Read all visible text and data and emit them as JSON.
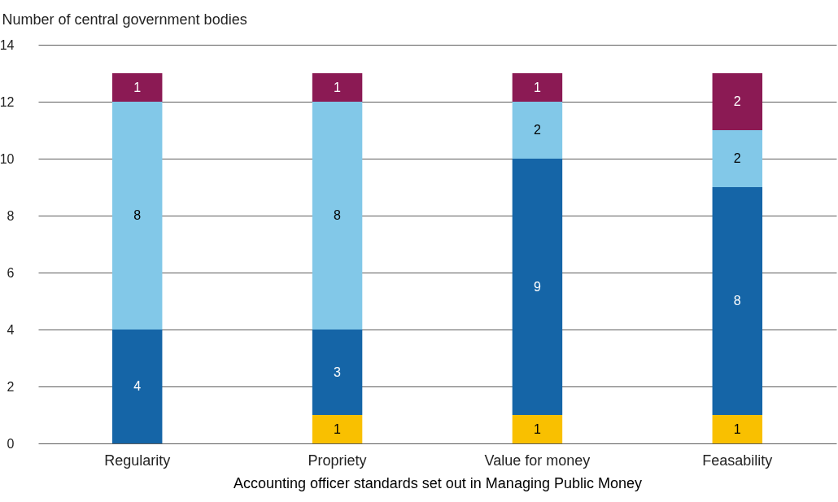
{
  "chart_data": {
    "type": "bar",
    "stacked": true,
    "ylabel": "Number of central government bodies",
    "xlabel": "Accounting officer standards set out in Managing Public Money",
    "categories": [
      "Regularity",
      "Propriety",
      "Value for money",
      "Feasability"
    ],
    "series": [
      {
        "color": "#f9c000",
        "values": [
          null,
          1,
          1,
          1
        ]
      },
      {
        "color": "#1565a7",
        "values": [
          4,
          3,
          9,
          8
        ]
      },
      {
        "color": "#82c8e8",
        "values": [
          8,
          8,
          2,
          2
        ]
      },
      {
        "color": "#8b1a54",
        "values": [
          1,
          1,
          1,
          2
        ]
      }
    ],
    "ylim": [
      0,
      14
    ],
    "yticks": [
      0,
      2,
      4,
      6,
      8,
      10,
      12,
      14
    ],
    "grid": "y",
    "data_labels": true
  }
}
